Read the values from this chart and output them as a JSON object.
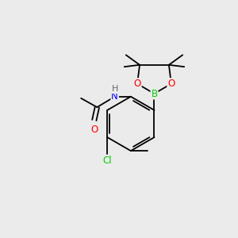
{
  "bg_color": "#ebebeb",
  "bond_color": "#000000",
  "bond_width": 1.3,
  "atom_colors": {
    "O": "#ff0000",
    "B": "#00cc00",
    "N": "#0000ff",
    "Cl": "#00cc00",
    "H": "#666666"
  },
  "font_size": 8.5,
  "small_font": 7.5,
  "figsize": [
    3.0,
    3.0
  ],
  "dpi": 100
}
